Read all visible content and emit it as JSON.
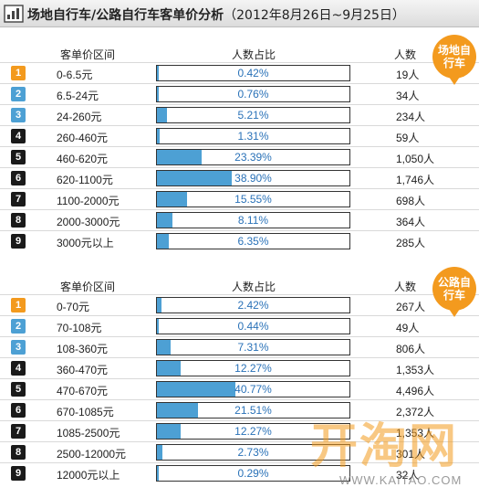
{
  "title": "场地自行车/公路自行车客单价分析",
  "title_range": "（2012年8月26日~9月25日）",
  "colors": {
    "bar": "#4da0d4",
    "badge": "#f39a1e",
    "rank_top": [
      "#f39a1e",
      "#4da0d4",
      "#4da0d4"
    ],
    "rank_other": "#1a1a1a"
  },
  "chart_data": [
    {
      "type": "bar",
      "badge": "场地自行车",
      "headers": {
        "range": "客单价区间",
        "share": "人数占比",
        "count": "人数"
      },
      "ranks": [
        "1",
        "2",
        "3",
        "4",
        "5",
        "6",
        "7",
        "8",
        "9"
      ],
      "categories": [
        "0-6.5元",
        "6.5-24元",
        "24-260元",
        "260-460元",
        "460-620元",
        "620-1100元",
        "1100-2000元",
        "2000-3000元",
        "3000元以上"
      ],
      "values": [
        0.42,
        0.76,
        5.21,
        1.31,
        23.39,
        38.9,
        15.55,
        8.11,
        6.35
      ],
      "value_labels": [
        "0.42%",
        "0.76%",
        "5.21%",
        "1.31%",
        "23.39%",
        "38.90%",
        "15.55%",
        "8.11%",
        "6.35%"
      ],
      "counts": [
        "19人",
        "34人",
        "234人",
        "59人",
        "1,050人",
        "1,746人",
        "698人",
        "364人",
        "285人"
      ],
      "xlim": [
        0,
        100
      ]
    },
    {
      "type": "bar",
      "badge": "公路自行车",
      "headers": {
        "range": "客单价区间",
        "share": "人数占比",
        "count": "人数"
      },
      "ranks": [
        "1",
        "2",
        "3",
        "4",
        "5",
        "6",
        "7",
        "8",
        "9"
      ],
      "categories": [
        "0-70元",
        "70-108元",
        "108-360元",
        "360-470元",
        "470-670元",
        "670-1085元",
        "1085-2500元",
        "2500-12000元",
        "12000元以上"
      ],
      "values": [
        2.42,
        0.44,
        7.31,
        12.27,
        40.77,
        21.51,
        12.27,
        2.73,
        0.29
      ],
      "value_labels": [
        "2.42%",
        "0.44%",
        "7.31%",
        "12.27%",
        "40.77%",
        "21.51%",
        "12.27%",
        "2.73%",
        "0.29%"
      ],
      "counts": [
        "267人",
        "49人",
        "806人",
        "1,353人",
        "4,496人",
        "2,372人",
        "1,353人",
        "301人",
        "32人"
      ],
      "xlim": [
        0,
        100
      ]
    }
  ],
  "watermark": {
    "logo": "开淘网",
    "url": "WWW.KAITAO.COM"
  }
}
